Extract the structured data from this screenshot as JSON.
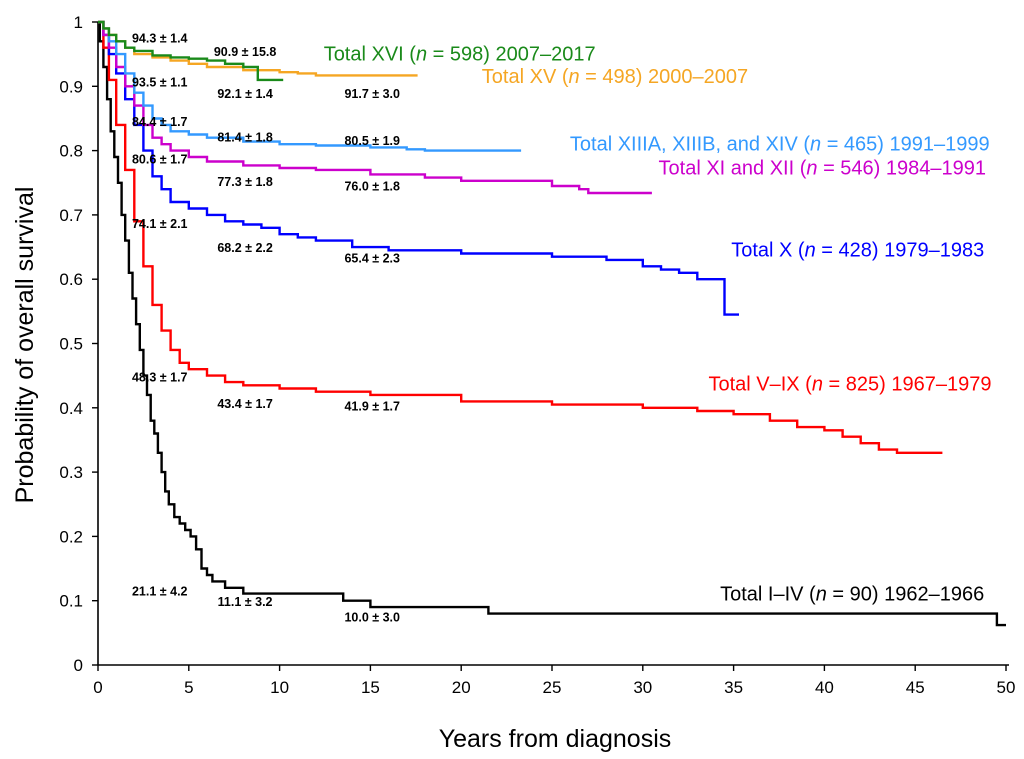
{
  "chart_data": {
    "type": "line",
    "step": true,
    "xlabel": "Years from diagnosis",
    "ylabel": "Probability of overall survival",
    "xlim": [
      0,
      50
    ],
    "ylim": [
      0,
      1
    ],
    "xticks": [
      "0",
      "5",
      "10",
      "15",
      "20",
      "25",
      "30",
      "35",
      "40",
      "45",
      "50"
    ],
    "yticks": [
      "0",
      "0.1",
      "0.2",
      "0.3",
      "0.4",
      "0.5",
      "0.6",
      "0.7",
      "0.8",
      "0.9",
      "1"
    ],
    "grid": false,
    "series": [
      {
        "key": "i_iv",
        "name": "Total I–IV (n = 90) 1962–1966",
        "label_prefix": "Total I–IV (",
        "label_n": "n",
        "label_mid": " = 90) ",
        "label_years": "1962–1966",
        "color": "#000000",
        "x": [
          0,
          0.1,
          0.3,
          0.5,
          0.7,
          0.9,
          1.1,
          1.3,
          1.5,
          1.7,
          1.9,
          2.1,
          2.3,
          2.5,
          2.7,
          2.9,
          3.1,
          3.3,
          3.5,
          3.7,
          3.9,
          4.2,
          4.5,
          4.8,
          5.1,
          5.4,
          5.7,
          6.0,
          6.3,
          7.0,
          8.0,
          13.5,
          15.0,
          21.5,
          49.5,
          50.0
        ],
        "y": [
          1,
          0.97,
          0.93,
          0.88,
          0.83,
          0.79,
          0.75,
          0.7,
          0.66,
          0.61,
          0.57,
          0.53,
          0.49,
          0.45,
          0.42,
          0.38,
          0.36,
          0.33,
          0.3,
          0.27,
          0.25,
          0.23,
          0.22,
          0.21,
          0.2,
          0.18,
          0.15,
          0.14,
          0.13,
          0.12,
          0.111,
          0.1,
          0.09,
          0.08,
          0.062,
          0.062
        ]
      },
      {
        "key": "v_ix",
        "name": "Total V–IX (n = 825) 1967–1979",
        "label_prefix": "Total V–IX (",
        "label_n": "n",
        "label_mid": " = 825) ",
        "label_years": "1967–1979",
        "color": "#ff0000",
        "x": [
          0,
          0.3,
          0.6,
          1,
          1.5,
          2,
          2.5,
          3,
          3.5,
          4,
          4.5,
          5,
          6,
          7,
          8,
          10,
          12,
          15,
          20,
          25,
          30,
          33,
          35,
          37,
          38.5,
          40,
          41,
          42,
          43,
          44,
          46.5
        ],
        "y": [
          1,
          0.96,
          0.91,
          0.84,
          0.77,
          0.69,
          0.62,
          0.56,
          0.52,
          0.49,
          0.47,
          0.46,
          0.45,
          0.44,
          0.435,
          0.43,
          0.425,
          0.42,
          0.41,
          0.405,
          0.4,
          0.395,
          0.39,
          0.38,
          0.37,
          0.365,
          0.355,
          0.345,
          0.335,
          0.33,
          0.33
        ]
      },
      {
        "key": "x",
        "name": "Total X (n = 428) 1979–1983",
        "label_prefix": "Total X (",
        "label_n": "n",
        "label_mid": " = 428) ",
        "label_years": "1979–1983",
        "color": "#0000ff",
        "x": [
          0,
          0.3,
          0.6,
          1,
          1.5,
          2,
          2.5,
          3,
          3.5,
          4,
          5,
          6,
          7,
          8,
          9,
          10,
          11,
          12,
          14,
          16,
          20,
          25,
          28,
          30,
          31,
          32,
          33,
          34.5,
          35.3
        ],
        "y": [
          1,
          0.98,
          0.95,
          0.92,
          0.88,
          0.84,
          0.8,
          0.76,
          0.74,
          0.72,
          0.71,
          0.7,
          0.69,
          0.685,
          0.68,
          0.67,
          0.665,
          0.66,
          0.65,
          0.645,
          0.64,
          0.635,
          0.63,
          0.62,
          0.615,
          0.61,
          0.6,
          0.545,
          0.545
        ]
      },
      {
        "key": "xi_xii",
        "name": "Total XI and XII (n = 546) 1984–1991",
        "label_prefix": "Total XI and XII (",
        "label_n": "n",
        "label_mid": " = 546) ",
        "label_years": "1984–1991",
        "color": "#cc00cc",
        "x": [
          0,
          0.3,
          0.6,
          1,
          1.5,
          2,
          2.5,
          3,
          3.5,
          4,
          5,
          6,
          8,
          10,
          12,
          15,
          18,
          20,
          25,
          26.5,
          27,
          30.5
        ],
        "y": [
          1,
          0.98,
          0.96,
          0.93,
          0.9,
          0.87,
          0.84,
          0.82,
          0.81,
          0.8,
          0.79,
          0.783,
          0.777,
          0.773,
          0.77,
          0.763,
          0.758,
          0.753,
          0.745,
          0.74,
          0.734,
          0.734
        ]
      },
      {
        "key": "xiii_xiv",
        "name": "Total XIIIA, XIIIB, and XIV (n = 465) 1991–1999",
        "label_prefix": "Total XIIIA, XIIIB, and XIV (",
        "label_n": "n",
        "label_mid": " = 465) ",
        "label_years": "1991–1999",
        "color": "#3399ff",
        "x": [
          0,
          0.3,
          0.6,
          1,
          1.5,
          2,
          2.5,
          3,
          3.5,
          4,
          5,
          6,
          8,
          10,
          12,
          15,
          17,
          18,
          23.3
        ],
        "y": [
          1,
          0.99,
          0.97,
          0.95,
          0.92,
          0.89,
          0.87,
          0.85,
          0.84,
          0.83,
          0.825,
          0.82,
          0.814,
          0.81,
          0.808,
          0.805,
          0.802,
          0.8,
          0.8
        ]
      },
      {
        "key": "xv",
        "name": "Total XV (n = 498) 2000–2007",
        "label_prefix": "Total XV (",
        "label_n": "n",
        "label_mid": " = 498) ",
        "label_years": "2000–2007",
        "color": "#f5a623",
        "x": [
          0,
          0.3,
          0.6,
          1,
          1.5,
          2,
          3,
          4,
          5,
          6,
          8,
          10,
          11,
          12,
          17.6
        ],
        "y": [
          1,
          0.99,
          0.98,
          0.97,
          0.96,
          0.95,
          0.945,
          0.94,
          0.935,
          0.93,
          0.925,
          0.922,
          0.92,
          0.917,
          0.917
        ]
      },
      {
        "key": "xvi",
        "name": "Total XVI (n = 598) 2007–2017",
        "label_prefix": "Total XVI (",
        "label_n": "n",
        "label_mid": " = 598) ",
        "label_years": "2007–2017",
        "color": "#1a8a1a",
        "x": [
          0,
          0.3,
          0.6,
          1,
          1.5,
          2,
          3,
          4,
          5,
          6,
          7,
          8,
          8.8,
          10.2
        ],
        "y": [
          1,
          0.99,
          0.98,
          0.97,
          0.96,
          0.955,
          0.948,
          0.945,
          0.943,
          0.94,
          0.935,
          0.93,
          0.91,
          0.91
        ]
      }
    ],
    "annotations": [
      {
        "text": "94.3 ± 1.4",
        "x": 3.4,
        "y": 0.968
      },
      {
        "text": "90.9 ± 15.8",
        "x": 8.1,
        "y": 0.947
      },
      {
        "text": "93.5 ± 1.1",
        "x": 3.4,
        "y": 0.9
      },
      {
        "text": "92.1 ± 1.4",
        "x": 8.1,
        "y": 0.882
      },
      {
        "text": "91.7 ± 3.0",
        "x": 15.1,
        "y": 0.882
      },
      {
        "text": "84.4 ± 1.7",
        "x": 3.4,
        "y": 0.838
      },
      {
        "text": "81.4 ± 1.8",
        "x": 8.1,
        "y": 0.814
      },
      {
        "text": "80.5 ± 1.9",
        "x": 15.1,
        "y": 0.809
      },
      {
        "text": "80.6 ± 1.7",
        "x": 3.4,
        "y": 0.78
      },
      {
        "text": "77.3 ± 1.8",
        "x": 8.1,
        "y": 0.745
      },
      {
        "text": "76.0 ± 1.8",
        "x": 15.1,
        "y": 0.738
      },
      {
        "text": "74.1 ± 2.1",
        "x": 3.4,
        "y": 0.68
      },
      {
        "text": "68.2 ± 2.2",
        "x": 8.1,
        "y": 0.642
      },
      {
        "text": "65.4 ± 2.3",
        "x": 15.1,
        "y": 0.626
      },
      {
        "text": "48.3 ± 1.7",
        "x": 3.4,
        "y": 0.441
      },
      {
        "text": "43.4 ± 1.7",
        "x": 8.1,
        "y": 0.4
      },
      {
        "text": "41.9 ± 1.7",
        "x": 15.1,
        "y": 0.396
      },
      {
        "text": "21.1 ± 4.2",
        "x": 3.4,
        "y": 0.108
      },
      {
        "text": "11.1 ± 3.2",
        "x": 8.1,
        "y": 0.092
      },
      {
        "text": "10.0 ± 3.0",
        "x": 15.1,
        "y": 0.068
      }
    ],
    "series_labels": [
      {
        "key": "xvi",
        "x": 27.4,
        "y": 0.94
      },
      {
        "key": "xv",
        "x": 35.8,
        "y": 0.905
      },
      {
        "key": "xiii_xiv",
        "x": 49.1,
        "y": 0.8
      },
      {
        "key": "xi_xii",
        "x": 48.9,
        "y": 0.763
      },
      {
        "key": "x",
        "x": 48.8,
        "y": 0.635
      },
      {
        "key": "v_ix",
        "x": 49.2,
        "y": 0.427
      },
      {
        "key": "i_iv",
        "x": 48.8,
        "y": 0.1
      }
    ]
  }
}
